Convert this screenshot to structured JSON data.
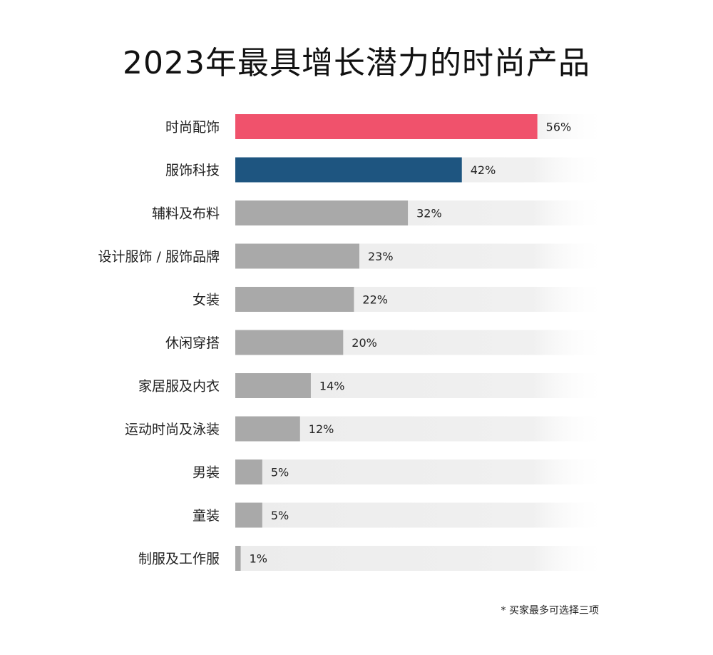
{
  "chart_data": {
    "type": "bar",
    "orientation": "horizontal",
    "title": "2023年最具增长潜力的时尚产品",
    "categories": [
      "时尚配饰",
      "服饰科技",
      "辅料及布料",
      "设计服饰 / 服饰品牌",
      "女装",
      "休闲穿搭",
      "家居服及内衣",
      "运动时尚及泳装",
      "男装",
      "童装",
      "制服及工作服"
    ],
    "values": [
      56,
      42,
      32,
      23,
      22,
      20,
      14,
      12,
      5,
      5,
      1
    ],
    "value_labels": [
      "56%",
      "42%",
      "32%",
      "23%",
      "22%",
      "20%",
      "14%",
      "12%",
      "5%",
      "5%",
      "1%"
    ],
    "unit": "%",
    "xlim": [
      0,
      69
    ],
    "grid": false,
    "legend": "none",
    "bar_colors": [
      "#f0526c",
      "#1e5580",
      "#a9a9a9",
      "#a9a9a9",
      "#a9a9a9",
      "#a9a9a9",
      "#a9a9a9",
      "#a9a9a9",
      "#a9a9a9",
      "#a9a9a9",
      "#a9a9a9"
    ],
    "track_color": "#ececec",
    "footnote": "* 买家最多可选择三项"
  }
}
